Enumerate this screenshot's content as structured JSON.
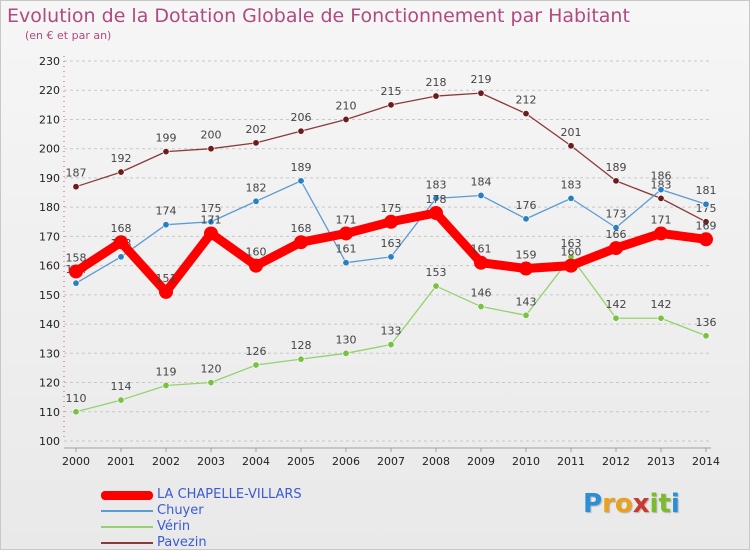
{
  "title": "Evolution de la Dotation Globale de Fonctionnement par Habitant",
  "subtitle": "(en € et par an)",
  "logo": {
    "letters": [
      {
        "ch": "P",
        "color": "#2c8fd6"
      },
      {
        "ch": "r",
        "color": "#e8a21c"
      },
      {
        "ch": "o",
        "color": "#e8a21c"
      },
      {
        "ch": "x",
        "color": "#c93a2e"
      },
      {
        "ch": "i",
        "color": "#7dbb2e"
      },
      {
        "ch": "t",
        "color": "#7dbb2e"
      },
      {
        "ch": "i",
        "color": "#2c8fd6"
      }
    ]
  },
  "chart_data": {
    "type": "line",
    "title": "Evolution de la Dotation Globale de Fonctionnement par Habitant",
    "subtitle": "(en € et par an)",
    "xlabel": "",
    "ylabel": "",
    "x": [
      "2000",
      "2001",
      "2002",
      "2003",
      "2004",
      "2005",
      "2006",
      "2007",
      "2008",
      "2009",
      "2010",
      "2011",
      "2012",
      "2013",
      "2014"
    ],
    "ylim": [
      100,
      230
    ],
    "yticks": [
      100,
      110,
      120,
      130,
      140,
      150,
      160,
      170,
      180,
      190,
      200,
      210,
      220,
      230
    ],
    "grid": "horizontal dashed",
    "legend_position": "bottom-left",
    "series": [
      {
        "name": "LA CHAPELLE-VILLARS",
        "color": "#ff0000",
        "marker": "#ff0000",
        "style": "thick",
        "values": [
          158,
          168,
          151,
          171,
          160,
          168,
          171,
          175,
          178,
          161,
          159,
          160,
          166,
          171,
          169
        ]
      },
      {
        "name": "Chuyer",
        "color": "#5b9bd5",
        "marker": "#2a7fc0",
        "style": "thin",
        "values": [
          154,
          163,
          174,
          175,
          182,
          189,
          161,
          163,
          183,
          184,
          176,
          183,
          173,
          186,
          181
        ]
      },
      {
        "name": "Vérin",
        "color": "#92d36e",
        "marker": "#7ac143",
        "style": "thin",
        "values": [
          110,
          114,
          119,
          120,
          126,
          128,
          130,
          133,
          153,
          146,
          143,
          163,
          142,
          142,
          136
        ]
      },
      {
        "name": "Pavezin",
        "color": "#8b3a3a",
        "marker": "#6b1d1d",
        "style": "thin",
        "values": [
          187,
          192,
          199,
          200,
          202,
          206,
          210,
          215,
          218,
          219,
          212,
          201,
          189,
          183,
          175
        ]
      }
    ]
  }
}
